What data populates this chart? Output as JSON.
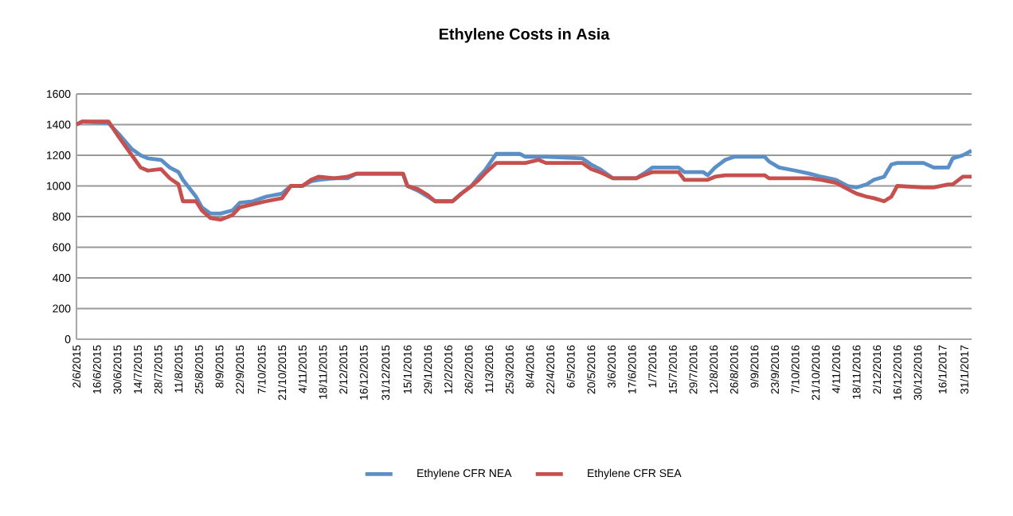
{
  "chart_data": {
    "type": "line",
    "title": "Ethylene Costs in Asia",
    "x": [
      "2015-06-02",
      "2015-06-06",
      "2015-06-24",
      "2015-07-01",
      "2015-07-10",
      "2015-07-16",
      "2015-07-21",
      "2015-07-30",
      "2015-08-05",
      "2015-08-11",
      "2015-08-14",
      "2015-08-23",
      "2015-08-27",
      "2015-09-02",
      "2015-09-09",
      "2015-09-17",
      "2015-09-22",
      "2015-10-01",
      "2015-10-10",
      "2015-10-21",
      "2015-10-27",
      "2015-11-04",
      "2015-11-10",
      "2015-11-15",
      "2015-11-26",
      "2015-12-05",
      "2015-12-11",
      "2016-01-12",
      "2016-01-15",
      "2016-01-22",
      "2016-01-29",
      "2016-02-03",
      "2016-02-15",
      "2016-02-21",
      "2016-02-28",
      "2016-03-04",
      "2016-03-08",
      "2016-03-16",
      "2016-04-01",
      "2016-04-05",
      "2016-04-14",
      "2016-04-19",
      "2016-05-14",
      "2016-05-20",
      "2016-05-26",
      "2016-06-04",
      "2016-06-20",
      "2016-06-25",
      "2016-07-01",
      "2016-07-19",
      "2016-07-23",
      "2016-08-05",
      "2016-08-08",
      "2016-08-13",
      "2016-08-20",
      "2016-08-26",
      "2016-09-16",
      "2016-09-19",
      "2016-09-26",
      "2016-10-07",
      "2016-10-17",
      "2016-10-25",
      "2016-11-04",
      "2016-11-12",
      "2016-11-18",
      "2016-11-25",
      "2016-11-30",
      "2016-12-07",
      "2016-12-12",
      "2016-12-16",
      "2017-01-03",
      "2017-01-10",
      "2017-01-20",
      "2017-01-23",
      "2017-01-30",
      "2017-02-05"
    ],
    "series": [
      {
        "name": "Ethylene CFR NEA",
        "color": "#5b8fc8",
        "values": [
          1400,
          1420,
          1410,
          1340,
          1240,
          1200,
          1180,
          1170,
          1120,
          1090,
          1040,
          930,
          860,
          820,
          820,
          840,
          890,
          900,
          930,
          950,
          1000,
          1000,
          1030,
          1040,
          1050,
          1050,
          1080,
          1080,
          1000,
          970,
          930,
          900,
          900,
          950,
          1000,
          1060,
          1100,
          1210,
          1210,
          1190,
          1190,
          1190,
          1180,
          1140,
          1110,
          1050,
          1050,
          1080,
          1120,
          1120,
          1090,
          1090,
          1070,
          1120,
          1170,
          1190,
          1190,
          1160,
          1120,
          1100,
          1080,
          1060,
          1040,
          1000,
          990,
          1010,
          1040,
          1060,
          1140,
          1150,
          1150,
          1120,
          1120,
          1180,
          1200,
          1230
        ]
      },
      {
        "name": "Ethylene CFR SEA",
        "color": "#c5504d",
        "values": [
          1400,
          1420,
          1420,
          1320,
          1200,
          1120,
          1100,
          1110,
          1050,
          1010,
          900,
          900,
          840,
          790,
          780,
          810,
          860,
          880,
          900,
          920,
          1000,
          1000,
          1040,
          1060,
          1050,
          1060,
          1080,
          1080,
          1000,
          980,
          940,
          900,
          900,
          950,
          1000,
          1040,
          1080,
          1150,
          1150,
          1150,
          1170,
          1150,
          1150,
          1110,
          1090,
          1050,
          1050,
          1070,
          1090,
          1090,
          1040,
          1040,
          1040,
          1060,
          1070,
          1070,
          1070,
          1050,
          1050,
          1050,
          1050,
          1040,
          1020,
          980,
          950,
          930,
          920,
          900,
          930,
          1000,
          990,
          990,
          1010,
          1010,
          1060,
          1060
        ]
      }
    ],
    "xlim": [
      "2015-06-02",
      "2017-02-05"
    ],
    "xticks": [
      {
        "value": "2015-06-02",
        "label": "2/6/2015"
      },
      {
        "value": "2015-06-16",
        "label": "16/6/2015"
      },
      {
        "value": "2015-06-30",
        "label": "30/6/2015"
      },
      {
        "value": "2015-07-14",
        "label": "14/7/2015"
      },
      {
        "value": "2015-07-28",
        "label": "28/7/2015"
      },
      {
        "value": "2015-08-11",
        "label": "11/8/2015"
      },
      {
        "value": "2015-08-25",
        "label": "25/8/2015"
      },
      {
        "value": "2015-09-08",
        "label": "8/9/2015"
      },
      {
        "value": "2015-09-22",
        "label": "22/9/2015"
      },
      {
        "value": "2015-10-07",
        "label": "7/10/2015"
      },
      {
        "value": "2015-10-21",
        "label": "21/10/2015"
      },
      {
        "value": "2015-11-04",
        "label": "4/11/2015"
      },
      {
        "value": "2015-11-18",
        "label": "18/11/2015"
      },
      {
        "value": "2015-12-02",
        "label": "2/12/2015"
      },
      {
        "value": "2015-12-16",
        "label": "16/12/2015"
      },
      {
        "value": "2015-12-31",
        "label": "31/12/2015"
      },
      {
        "value": "2016-01-15",
        "label": "15/1/2016"
      },
      {
        "value": "2016-01-29",
        "label": "29/1/2016"
      },
      {
        "value": "2016-02-12",
        "label": "12/2/2016"
      },
      {
        "value": "2016-02-26",
        "label": "26/2/2016"
      },
      {
        "value": "2016-03-11",
        "label": "11/3/2016"
      },
      {
        "value": "2016-03-25",
        "label": "25/3/2016"
      },
      {
        "value": "2016-04-08",
        "label": "8/4/2016"
      },
      {
        "value": "2016-04-22",
        "label": "22/4/2016"
      },
      {
        "value": "2016-05-06",
        "label": "6/5/2016"
      },
      {
        "value": "2016-05-20",
        "label": "20/5/2016"
      },
      {
        "value": "2016-06-03",
        "label": "3/6/2016"
      },
      {
        "value": "2016-06-17",
        "label": "17/6/2016"
      },
      {
        "value": "2016-07-01",
        "label": "1/7/2016"
      },
      {
        "value": "2016-07-15",
        "label": "15/7/2016"
      },
      {
        "value": "2016-07-29",
        "label": "29/7/2016"
      },
      {
        "value": "2016-08-12",
        "label": "12/8/2016"
      },
      {
        "value": "2016-08-26",
        "label": "26/8/2016"
      },
      {
        "value": "2016-09-09",
        "label": "9/9/2016"
      },
      {
        "value": "2016-09-23",
        "label": "23/9/2016"
      },
      {
        "value": "2016-10-07",
        "label": "7/10/2016"
      },
      {
        "value": "2016-10-21",
        "label": "21/10/2016"
      },
      {
        "value": "2016-11-04",
        "label": "4/11/2016"
      },
      {
        "value": "2016-11-18",
        "label": "18/11/2016"
      },
      {
        "value": "2016-12-02",
        "label": "2/12/2016"
      },
      {
        "value": "2016-12-16",
        "label": "16/12/2016"
      },
      {
        "value": "2016-12-30",
        "label": "30/12/2016"
      },
      {
        "value": "2017-01-16",
        "label": "16/1/2017"
      },
      {
        "value": "2017-01-31",
        "label": "31/1/2017"
      }
    ],
    "ylim": [
      0,
      1600
    ],
    "yticks": [
      0,
      200,
      400,
      600,
      800,
      1000,
      1200,
      1400,
      1600
    ],
    "grid": "y",
    "legend": "bottom"
  }
}
